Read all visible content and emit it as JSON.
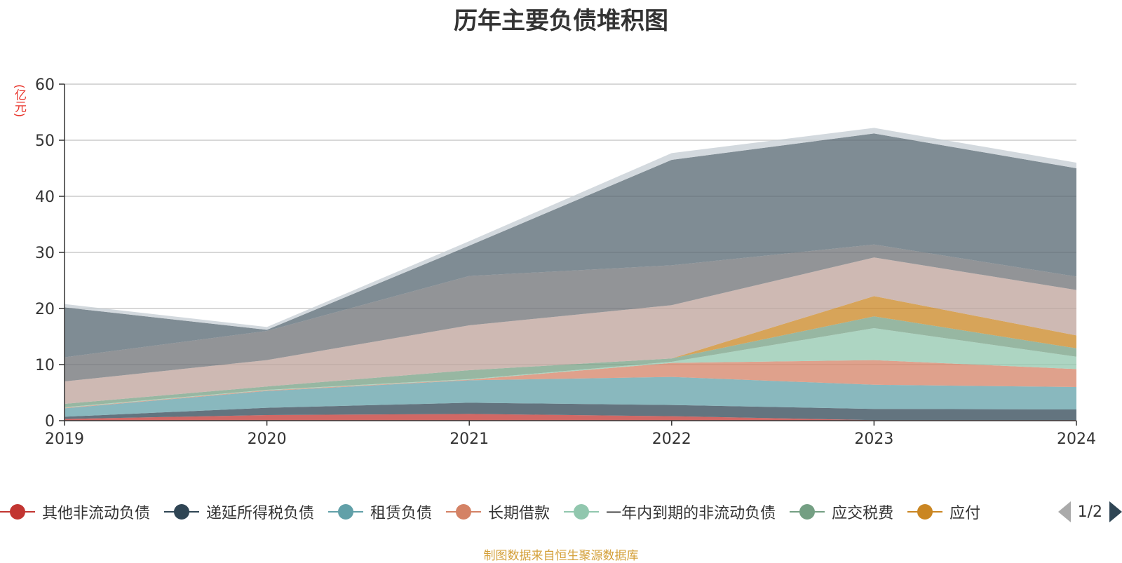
{
  "chart_data": {
    "type": "area",
    "stacked": true,
    "title": "历年主要负债堆积图",
    "unit_label": "(亿元)",
    "categories": [
      "2019",
      "2020",
      "2021",
      "2022",
      "2023",
      "2024"
    ],
    "ylim": [
      0,
      60
    ],
    "yticks": [
      0,
      10,
      20,
      30,
      40,
      50,
      60
    ],
    "grid": true,
    "series": [
      {
        "name": "其他非流动负债",
        "color": "#c23531",
        "values": [
          0.3,
          1.0,
          1.2,
          0.8,
          0.1,
          0.1
        ]
      },
      {
        "name": "递延所得税负债",
        "color": "#2f4554",
        "values": [
          0.4,
          1.3,
          2.0,
          2.0,
          2.0,
          1.9
        ]
      },
      {
        "name": "租赁负债",
        "color": "#61a0a8",
        "values": [
          1.5,
          3.0,
          4.0,
          5.0,
          4.3,
          4.0
        ]
      },
      {
        "name": "长期借款",
        "color": "#d48265",
        "values": [
          0.1,
          0.1,
          0.1,
          2.5,
          4.4,
          3.2
        ]
      },
      {
        "name": "一年内到期的非流动负债",
        "color": "#91c7ae",
        "values": [
          0.1,
          0.1,
          0.1,
          0.2,
          5.7,
          2.2
        ]
      },
      {
        "name": "应交税费",
        "color": "#749f83",
        "values": [
          0.6,
          0.6,
          1.6,
          0.6,
          2.1,
          1.5
        ]
      },
      {
        "name": "应付",
        "color": "#ca8622",
        "values": [
          0.0,
          0.0,
          0.0,
          0.0,
          3.6,
          2.3
        ]
      },
      {
        "color": "#bda29a",
        "values": [
          4.0,
          4.7,
          8.0,
          9.5,
          6.9,
          8.1
        ]
      },
      {
        "color": "#6e7074",
        "values": [
          4.3,
          5.2,
          8.8,
          7.1,
          2.3,
          2.4
        ]
      },
      {
        "color": "#546570",
        "values": [
          8.9,
          0.2,
          5.4,
          18.8,
          19.8,
          19.3
        ]
      },
      {
        "color": "#c4ccd3",
        "values": [
          0.6,
          0.5,
          0.8,
          1.2,
          1.0,
          1.0
        ]
      }
    ],
    "legend_position": "bottom"
  },
  "legend_pager": {
    "text": "1/2"
  },
  "source_note": "制图数据来自恒生聚源数据库"
}
